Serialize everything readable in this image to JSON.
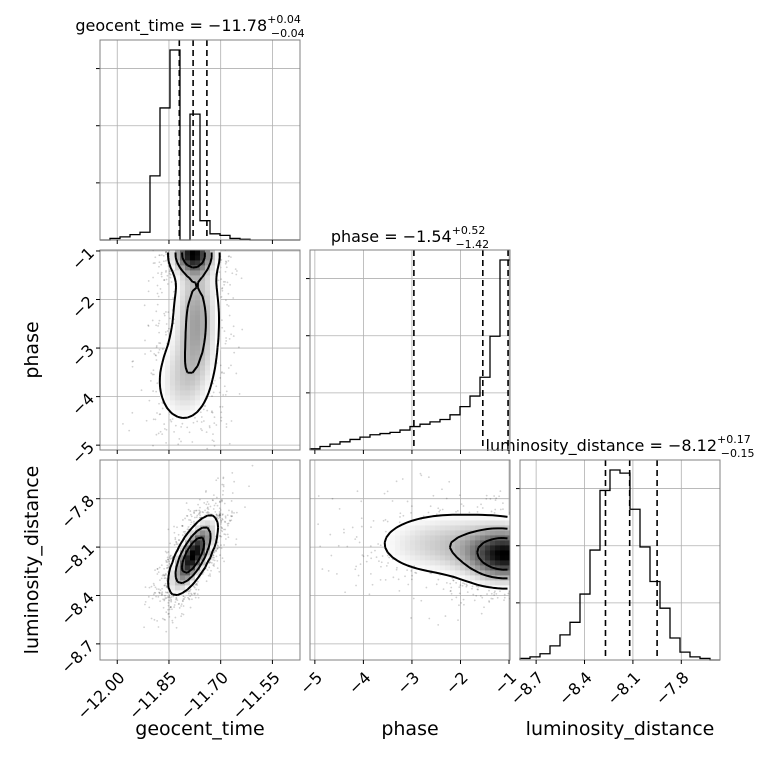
{
  "chart_data": {
    "type": "corner",
    "parameters": [
      {
        "name": "geocent_time",
        "title": {
          "prefix": "geocent_time = ",
          "median": "−11.78",
          "upper": "+0.04",
          "lower": "−0.04"
        },
        "xlabel": "geocent_time",
        "ticks": [
          "−12.00",
          "−11.85",
          "−11.70",
          "−11.55"
        ],
        "tick_values": [
          -12.0,
          -11.85,
          -11.7,
          -11.55
        ],
        "range": [
          -12.05,
          -11.47
        ],
        "quantiles": [
          -11.82,
          -11.78,
          -11.74
        ],
        "hist": {
          "edges_start": -12.05,
          "bin_width": 0.029,
          "counts": [
            0,
            2,
            4,
            7,
            10,
            83,
            171,
            246,
            0,
            163,
            25,
            8,
            6,
            2,
            1,
            0,
            0,
            0,
            0,
            0
          ]
        }
      },
      {
        "name": "phase",
        "title": {
          "prefix": "phase = ",
          "median": "−1.54",
          "upper": "+0.52",
          "lower": "−1.42"
        },
        "xlabel": "phase",
        "ylabel": "phase",
        "ticks": [
          "−5",
          "−4",
          "−3",
          "−2",
          "−1"
        ],
        "tick_values": [
          -5,
          -4,
          -3,
          -2,
          -1
        ],
        "range": [
          -5.1,
          -0.98
        ],
        "quantiles": [
          -2.96,
          -1.54,
          -1.02
        ],
        "hist": {
          "edges_start": -5.1,
          "bin_width": 0.206,
          "counts": [
            1,
            3,
            5,
            7,
            9,
            11,
            13,
            14,
            15,
            17,
            20,
            22,
            24,
            26,
            30,
            37,
            46,
            62,
            97,
            162
          ]
        }
      },
      {
        "name": "luminosity_distance",
        "title": {
          "prefix": "luminosity_distance = ",
          "median": "−8.12",
          "upper": "+0.17",
          "lower": "−0.15"
        },
        "xlabel": "luminosity_distance",
        "ylabel": "luminosity_distance",
        "ticks": [
          "−8.7",
          "−8.4",
          "−8.1",
          "−7.8"
        ],
        "tick_values": [
          -8.7,
          -8.4,
          -8.1,
          -7.8
        ],
        "range": [
          -8.8,
          -7.56
        ],
        "quantiles": [
          -8.27,
          -8.12,
          -7.95
        ],
        "hist": {
          "edges_start": -8.8,
          "bin_width": 0.062,
          "counts": [
            1,
            2,
            4,
            9,
            16,
            24,
            42,
            70,
            108,
            121,
            119,
            96,
            72,
            50,
            33,
            14,
            5,
            2,
            1,
            0
          ]
        }
      }
    ],
    "density": {
      "phase_vs_geocent_time": {
        "peaks": [
          {
            "x": -11.78,
            "y": -1.05,
            "sx": 0.035,
            "sy": 0.25,
            "w": 1.0
          },
          {
            "x": -11.77,
            "y": -2.4,
            "sx": 0.04,
            "sy": 0.9,
            "w": 0.5
          },
          {
            "x": -11.82,
            "y": -3.7,
            "sx": 0.05,
            "sy": 0.6,
            "w": 0.25
          }
        ]
      },
      "luminosity_distance_vs_geocent_time": {
        "peaks": [
          {
            "x": -11.78,
            "y": -8.15,
            "sx": 0.035,
            "sy": 0.12,
            "w": 1.0,
            "rho": 0.7
          }
        ]
      },
      "luminosity_distance_vs_phase": {
        "peaks": [
          {
            "x": -1.05,
            "y": -8.15,
            "sx": 0.5,
            "sy": 0.1,
            "w": 1.0
          },
          {
            "x": -2.2,
            "y": -8.08,
            "sx": 1.0,
            "sy": 0.13,
            "w": 0.35
          }
        ]
      }
    }
  }
}
